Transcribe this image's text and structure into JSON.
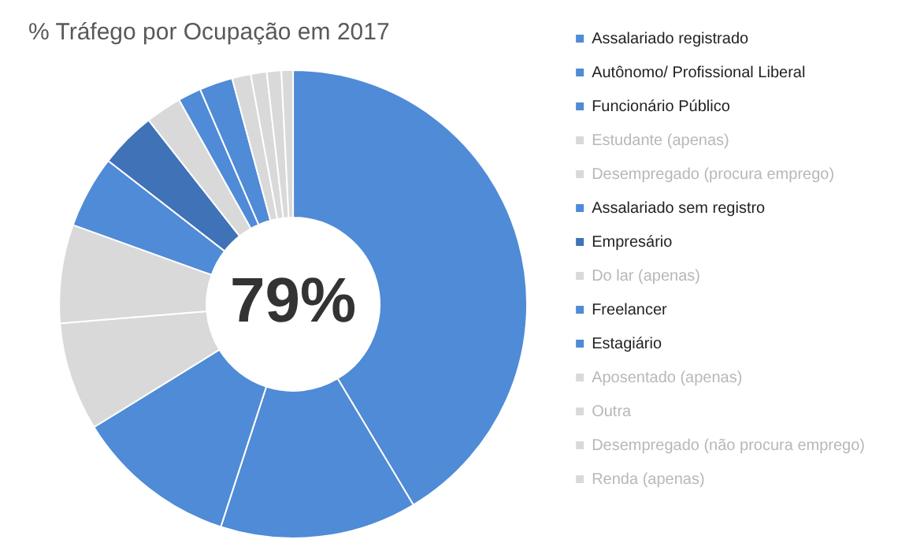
{
  "chart_data": {
    "type": "donut",
    "title": "% Tráfego por Ocupação em 2017",
    "categories": [
      "Assalariado registrado",
      "Autônomo/ Profissional Liberal",
      "Funcionário Público",
      "Estudante (apenas)",
      "Desempregado (procura emprego)",
      "Assalariado sem registro",
      "Empresário",
      "Do lar (apenas)",
      "Freelancer",
      "Estagiário",
      "Aposentado (apenas)",
      "Outra",
      "Desempregado (não procura emprego)",
      "Renda (apenas)"
    ],
    "values": [
      41.4,
      13.6,
      11.2,
      7.5,
      6.8,
      5.0,
      3.9,
      2.5,
      1.6,
      2.3,
      1.3,
      1.1,
      1.0,
      0.8
    ],
    "colors": [
      "#4f8bd6",
      "#4f8bd6",
      "#4f8bd6",
      "#d9d9d9",
      "#d9d9d9",
      "#4f8bd6",
      "#3f72b6",
      "#d9d9d9",
      "#4f8bd6",
      "#4f8bd6",
      "#d9d9d9",
      "#d9d9d9",
      "#d9d9d9",
      "#d9d9d9"
    ],
    "legend": "right",
    "annotations": [
      "79%"
    ]
  }
}
